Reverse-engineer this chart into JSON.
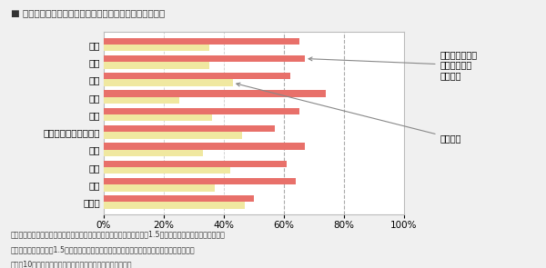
{
  "title": "庭やベランダの緑環境種類と庭やベランダを眺める頻度",
  "categories": [
    "高木",
    "中木",
    "低木",
    "列植",
    "地被",
    "壁面緑化・ネット緑化",
    "生垣",
    "草花",
    "菜園",
    "その他"
  ],
  "series": [
    {
      "label": "庭やベランダを\n眺めることが\nよくある",
      "color": "#e8706a",
      "values": [
        65,
        67,
        62,
        74,
        65,
        57,
        67,
        61,
        64,
        50
      ]
    },
    {
      "label": "それ以外",
      "color": "#f0e8a0",
      "values": [
        35,
        35,
        43,
        25,
        36,
        46,
        33,
        42,
        37,
        47
      ]
    }
  ],
  "xlabel_ticks": [
    "0%",
    "20%",
    "40%",
    "60%",
    "80%",
    "100%"
  ],
  "xlabel_values": [
    0,
    20,
    40,
    60,
    80,
    100
  ],
  "xlim": [
    0,
    100
  ],
  "annotation_text_1": "庭やベランダを\n眺めることが\nよくある",
  "annotation_text_2": "それ以外",
  "annotation_arrow_color": "#888888",
  "dashed_lines": [
    60,
    80
  ],
  "bar_height": 0.38,
  "footnote_lines": [
    "高木（単独植、およそ３メートル以上）　　　　中木（単独植、およそ1.5メートル以上、３メートル未満）",
    "低木（単独植、およそ1.5メートル未満）　　　列植（２本以上の樹木を連ねて植えるもの）",
    "地被（10センチ以下で地面をカバーするように植えるもの）"
  ],
  "bg_color": "#f0f0f0",
  "plot_bg_color": "#ffffff"
}
